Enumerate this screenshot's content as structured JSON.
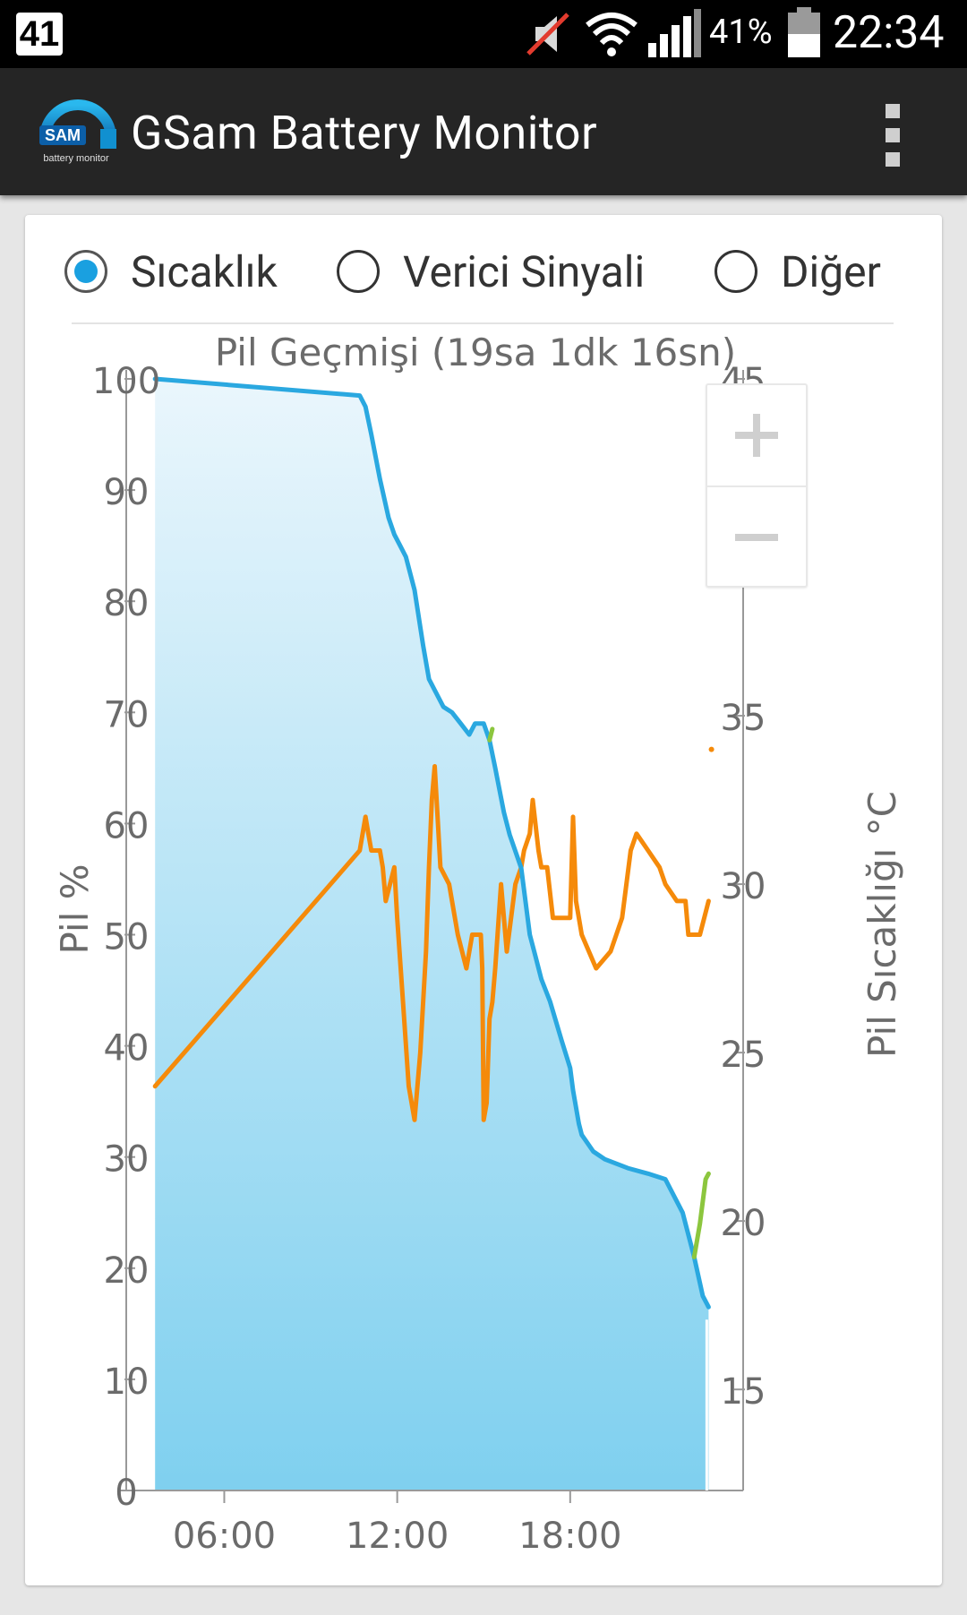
{
  "status_bar": {
    "notification_badge": "41",
    "battery_percent": "41%",
    "time": "22:34",
    "icons": [
      "muted-icon",
      "wifi-icon",
      "signal-icon",
      "battery-icon"
    ]
  },
  "app_bar": {
    "logo_text": "SAM",
    "logo_subtext": "battery monitor",
    "title": "GSam Battery Monitor",
    "menu_icon": "overflow-menu-icon"
  },
  "radio_group": {
    "options": [
      {
        "label": "Sıcaklık",
        "selected": true
      },
      {
        "label": "Verici Sinyali",
        "selected": false
      },
      {
        "label": "Diğer",
        "selected": false
      }
    ]
  },
  "colors": {
    "battery_line": "#2aa8e0",
    "temperature_line": "#f58a0a",
    "charging_line": "#8cc63e",
    "area_top": "#eaf6fc",
    "area_bottom": "#7fd0ef"
  },
  "chart_data": {
    "type": "line",
    "title": "Pil Geçmişi (19sa 1dk 16sn)",
    "ylabel_left": "Pil %",
    "ylabel_right": "Pil Sıcaklığı °C",
    "ylim_left": [
      0,
      100
    ],
    "ylim_right": [
      12,
      45
    ],
    "xlim": [
      2.6,
      24.0
    ],
    "left_ticks": [
      0,
      10,
      20,
      30,
      40,
      50,
      60,
      70,
      80,
      90,
      100
    ],
    "right_ticks": [
      15,
      20,
      25,
      30,
      35,
      40,
      45
    ],
    "x_ticks": [
      {
        "value": 6,
        "label": "06:00"
      },
      {
        "value": 12,
        "label": "12:00"
      },
      {
        "value": 18,
        "label": "18:00"
      }
    ],
    "legend": "none",
    "series": [
      {
        "key": "battery",
        "axis": "left",
        "x": [
          3.6,
          10.7,
          10.9,
          11.1,
          11.4,
          11.7,
          11.9,
          12.1,
          12.3,
          12.6,
          12.9,
          13.1,
          13.3,
          13.6,
          13.9,
          14.2,
          14.5,
          14.7,
          15.0,
          15.2,
          15.4,
          15.7,
          15.9,
          16.3,
          16.6,
          16.8,
          17.0,
          17.3,
          17.7,
          18.0,
          18.1,
          18.3,
          18.4,
          18.8,
          19.2,
          20.0,
          20.7,
          21.3,
          21.9,
          22.3,
          22.6,
          22.8
        ],
        "y": [
          100,
          98.5,
          97.5,
          95,
          91,
          87.5,
          86,
          85,
          84,
          81,
          76,
          73,
          72,
          70.5,
          70,
          69,
          68,
          69,
          69,
          67.5,
          65,
          61,
          59,
          56,
          50,
          48,
          46,
          44,
          40.5,
          38,
          36,
          33,
          32,
          30.5,
          29.8,
          29,
          28.5,
          28,
          25,
          21,
          17.5,
          16.5
        ]
      },
      {
        "key": "charging",
        "axis": "left",
        "x": [
          15.2,
          15.3,
          22.3,
          22.5,
          22.7,
          22.8
        ],
        "y": [
          67.5,
          68.5,
          21,
          24,
          28,
          28.5
        ],
        "segments": [
          [
            0,
            1
          ],
          [
            2,
            5
          ]
        ]
      },
      {
        "key": "temperature",
        "axis": "right",
        "x": [
          3.6,
          10.7,
          10.9,
          11.0,
          11.1,
          11.4,
          11.5,
          11.6,
          11.9,
          12.0,
          12.2,
          12.4,
          12.6,
          12.8,
          13.0,
          13.1,
          13.2,
          13.3,
          13.5,
          13.8,
          14.1,
          14.4,
          14.6,
          14.9,
          14.95,
          15.0,
          15.1,
          15.2,
          15.3,
          15.4,
          15.6,
          15.8,
          16.1,
          16.3,
          16.4,
          16.6,
          16.7,
          16.9,
          17.0,
          17.2,
          17.4,
          17.5,
          17.7,
          17.9,
          18.0,
          18.1,
          18.2,
          18.4,
          18.9,
          19.4,
          19.8,
          20.1,
          20.3,
          20.7,
          21.1,
          21.3,
          21.7,
          22.0,
          22.1,
          22.3,
          22.5,
          22.8
        ],
        "y": [
          24,
          31,
          32,
          31.5,
          31,
          31,
          30.5,
          29.5,
          30.5,
          29,
          26.5,
          24,
          23,
          25,
          28,
          30.5,
          32.5,
          33.5,
          30.5,
          30,
          28.5,
          27.5,
          28.5,
          28.5,
          27.5,
          23,
          23.5,
          26,
          26.5,
          27.5,
          30,
          28,
          30,
          30.5,
          31,
          31.5,
          32.5,
          31,
          30.5,
          30.5,
          29,
          29,
          29,
          29,
          29,
          32,
          29.5,
          28.5,
          27.5,
          28,
          29,
          31,
          31.5,
          31,
          30.5,
          30,
          29.5,
          29.5,
          28.5,
          28.5,
          28.5,
          29.5
        ]
      }
    ],
    "annotations": [
      {
        "x": 22.9,
        "y_right": 34.0,
        "note": "isolated orange dot"
      }
    ]
  }
}
